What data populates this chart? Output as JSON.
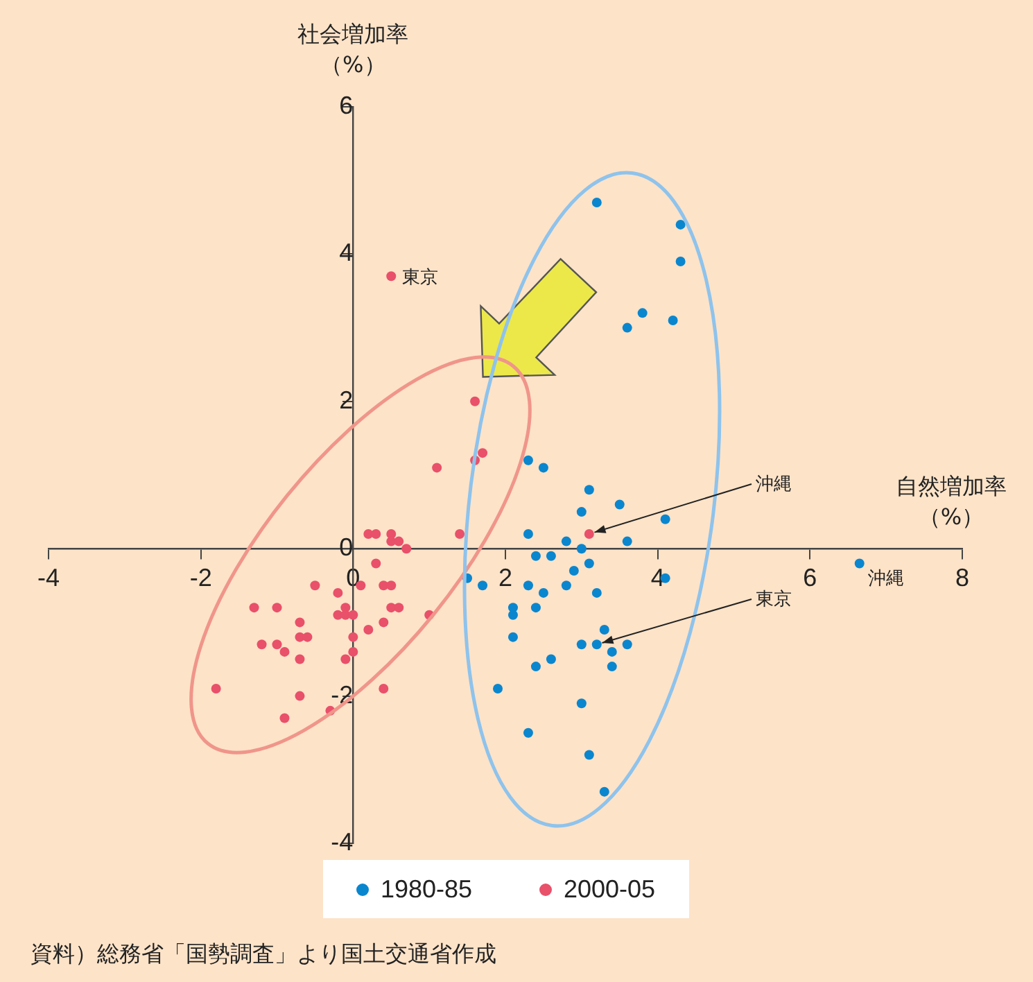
{
  "chart_data": {
    "type": "scatter",
    "xlabel": "自然増加率（%）",
    "ylabel": "社会増加率（%）",
    "xlim": [
      -4,
      8
    ],
    "xticks": [
      -4,
      -2,
      0,
      2,
      4,
      6,
      8
    ],
    "ylim": [
      -4,
      6
    ],
    "yticks": [
      -4,
      -2,
      0,
      2,
      4,
      6
    ],
    "grid": false,
    "legend": "bottom",
    "marker": "circle",
    "series": [
      {
        "name": "1980-85",
        "color": "#0a86cf",
        "x": [
          3.2,
          4.3,
          4.3,
          3.8,
          3.6,
          4.2,
          2.3,
          2.5,
          3.1,
          3.5,
          3.0,
          4.1,
          2.3,
          2.8,
          3.6,
          3.0,
          2.4,
          2.6,
          3.1,
          2.9,
          1.5,
          1.7,
          2.3,
          2.8,
          4.1,
          2.5,
          3.2,
          2.1,
          2.4,
          2.1,
          2.1,
          3.3,
          3.0,
          3.2,
          3.6,
          3.4,
          3.4,
          2.4,
          2.6,
          1.9,
          3.0,
          2.3,
          3.1,
          3.3,
          6.65
        ],
        "values": [
          4.7,
          4.4,
          3.9,
          3.2,
          3.0,
          3.1,
          1.2,
          1.1,
          0.8,
          0.6,
          0.5,
          0.4,
          0.2,
          0.1,
          0.1,
          0.0,
          -0.1,
          -0.1,
          -0.2,
          -0.3,
          -0.4,
          -0.5,
          -0.5,
          -0.5,
          -0.4,
          -0.6,
          -0.6,
          -0.8,
          -0.8,
          -0.9,
          -1.2,
          -1.1,
          -1.3,
          -1.3,
          -1.3,
          -1.4,
          -1.6,
          -1.6,
          -1.5,
          -1.9,
          -2.1,
          -2.5,
          -2.8,
          -3.3,
          -0.2
        ]
      },
      {
        "name": "2000-05",
        "color": "#e9506a",
        "x": [
          1.6,
          1.7,
          1.6,
          1.1,
          1.4,
          0.2,
          0.3,
          0.5,
          0.5,
          0.6,
          0.7,
          0.3,
          -0.5,
          0.1,
          0.4,
          0.5,
          -0.2,
          -1.3,
          -1.0,
          -0.1,
          0.5,
          0.6,
          -0.2,
          -0.1,
          0.0,
          1.0,
          -0.7,
          0.4,
          0.2,
          -1.2,
          -1.0,
          -0.7,
          -0.6,
          -0.9,
          0.0,
          -0.7,
          -0.1,
          0.0,
          -1.8,
          -0.7,
          0.4,
          -0.9,
          -0.3,
          0.5,
          3.1
        ],
        "values": [
          2.0,
          1.3,
          1.2,
          1.1,
          0.2,
          0.2,
          0.2,
          0.2,
          0.1,
          0.1,
          0.0,
          -0.2,
          -0.5,
          -0.5,
          -0.5,
          -0.5,
          -0.6,
          -0.8,
          -0.8,
          -0.8,
          -0.8,
          -0.8,
          -0.9,
          -0.9,
          -0.9,
          -0.9,
          -1.0,
          -1.0,
          -1.1,
          -1.3,
          -1.3,
          -1.2,
          -1.2,
          -1.4,
          -1.2,
          -1.5,
          -1.5,
          -1.4,
          -1.9,
          -2.0,
          -1.9,
          -2.3,
          -2.2,
          3.7,
          0.2
        ]
      }
    ],
    "annotations": [
      {
        "text": "東京",
        "x": 0.5,
        "y": 3.7
      },
      {
        "text": "沖縄",
        "x": 3.1,
        "y": 0.2
      },
      {
        "text": "東京",
        "x": 3.2,
        "y": -1.3
      },
      {
        "text": "沖縄",
        "x": 6.65,
        "y": -0.2
      },
      "資料）総務省「国勢調査」より国土交通省作成"
    ]
  }
}
